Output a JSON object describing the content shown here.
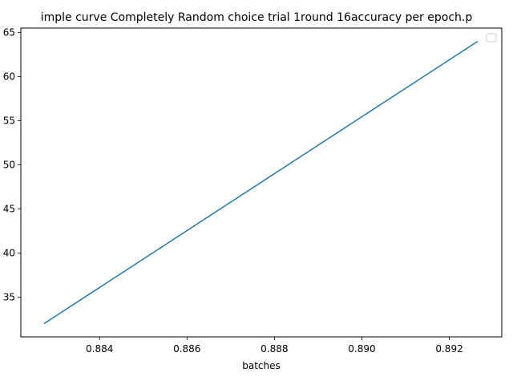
{
  "chart_data": {
    "type": "line",
    "title": "imple curve Completely Random choice trial 1round 16accuracy per epoch.p",
    "xlabel": "batches",
    "ylabel": "",
    "xlim": [
      0.8822,
      0.8932
    ],
    "ylim": [
      30.5,
      65.5
    ],
    "xticks": [
      0.884,
      0.886,
      0.888,
      0.89,
      0.892
    ],
    "xtick_labels": [
      "0.884",
      "0.886",
      "0.888",
      "0.890",
      "0.892"
    ],
    "yticks": [
      35,
      40,
      45,
      50,
      55,
      60,
      65
    ],
    "ytick_labels": [
      "35",
      "40",
      "45",
      "50",
      "55",
      "60",
      "65"
    ],
    "grid": false,
    "legend": {
      "placement": "top-right",
      "entries": []
    },
    "series": [
      {
        "color": "#1f77b4",
        "x": [
          0.88273,
          0.89265
        ],
        "y": [
          32,
          64
        ]
      }
    ]
  }
}
